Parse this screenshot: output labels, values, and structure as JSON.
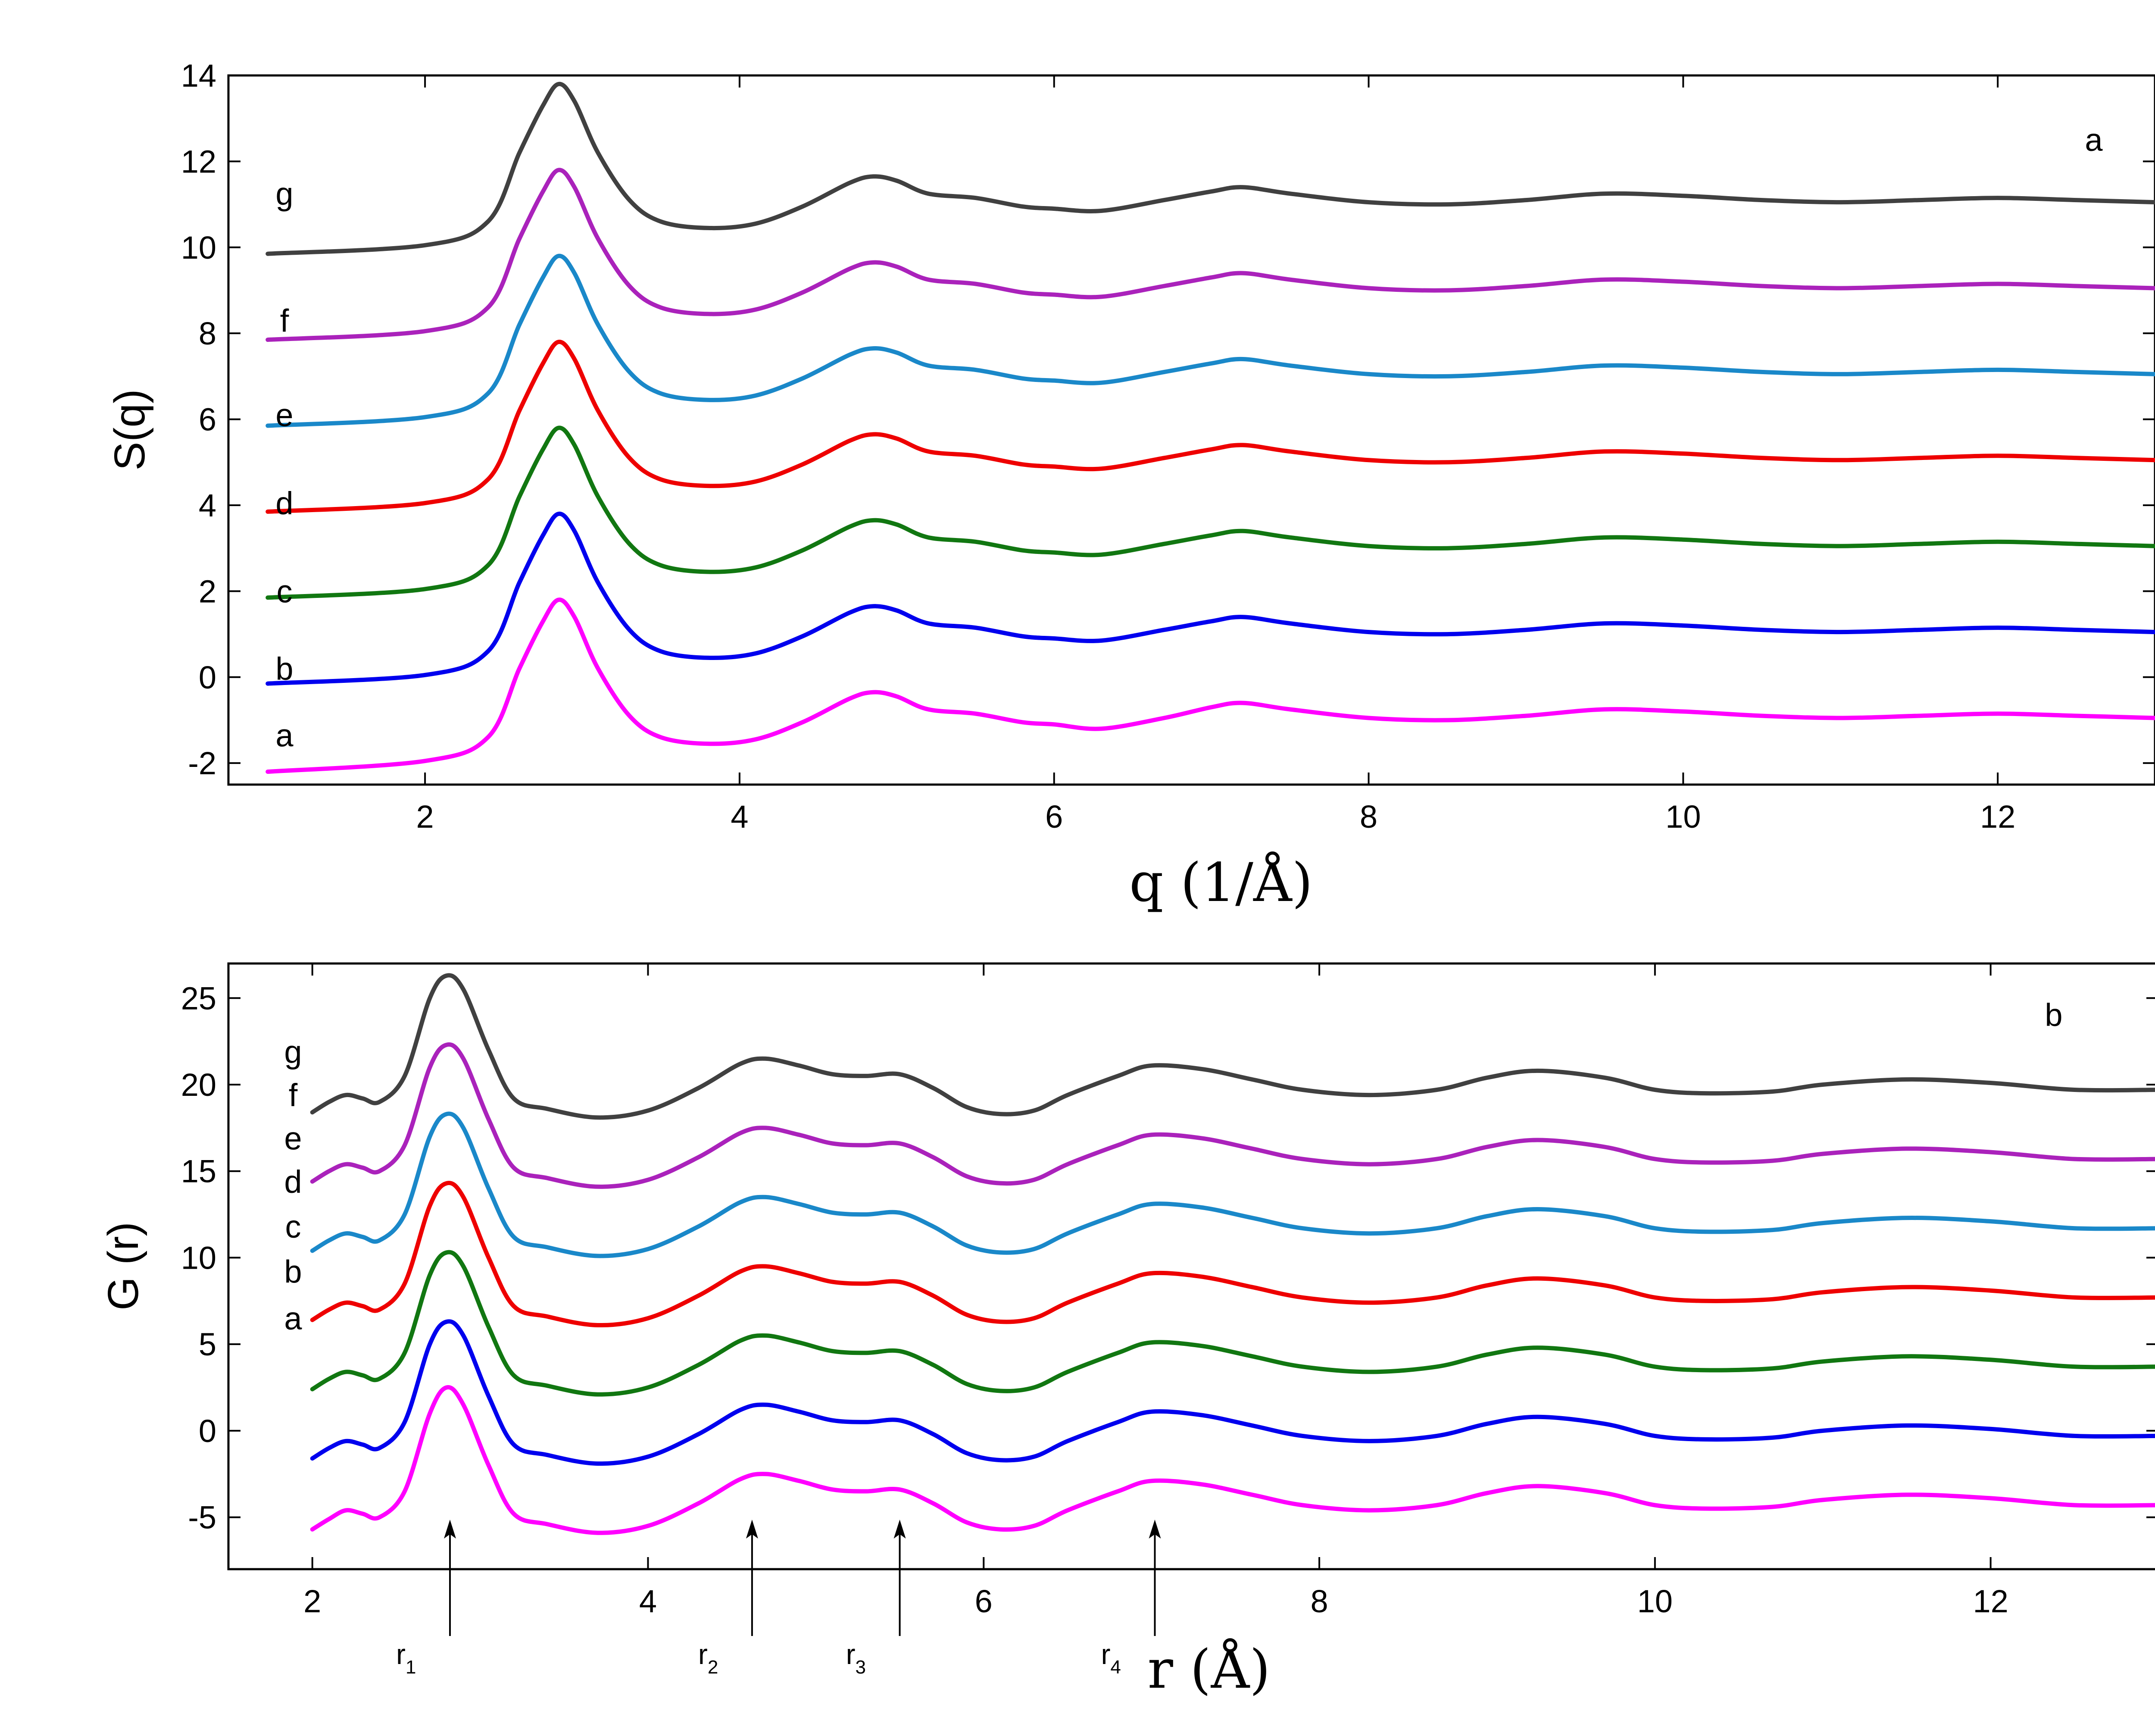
{
  "chart_data": [
    {
      "type": "line",
      "panel_label": "a",
      "title": "",
      "xlabel": "q (1/Å)",
      "ylabel": "S(q)",
      "xlim": [
        0.75,
        13
      ],
      "ylim": [
        -2.5,
        14
      ],
      "xticks": [
        "2",
        "4",
        "6",
        "8",
        "10",
        "12"
      ],
      "yticks": [
        "-2",
        "0",
        "2",
        "4",
        "6",
        "8",
        "10",
        "12",
        "14"
      ],
      "grid": false,
      "x": [
        1.0,
        2.0,
        2.4,
        2.6,
        2.75,
        2.85,
        2.95,
        3.1,
        3.3,
        3.5,
        3.8,
        4.1,
        4.4,
        4.7,
        4.85,
        5.0,
        5.2,
        5.5,
        5.8,
        6.0,
        6.3,
        6.7,
        7.0,
        7.2,
        7.5,
        8.0,
        8.5,
        9.0,
        9.5,
        10.0,
        10.5,
        11.0,
        11.5,
        12.0,
        12.5,
        13.0
      ],
      "series": [
        {
          "name": "a",
          "color": "#ff00ff",
          "values": [
            -2.2,
            -1.95,
            -1.4,
            0.2,
            1.3,
            1.8,
            1.4,
            0.2,
            -0.9,
            -1.4,
            -1.55,
            -1.45,
            -1.05,
            -0.5,
            -0.35,
            -0.45,
            -0.75,
            -0.85,
            -1.05,
            -1.1,
            -1.2,
            -0.95,
            -0.7,
            -0.6,
            -0.75,
            -0.95,
            -1.0,
            -0.9,
            -0.75,
            -0.8,
            -0.9,
            -0.95,
            -0.9,
            -0.85,
            -0.9,
            -0.95
          ]
        },
        {
          "name": "b",
          "color": "#0000ee",
          "values": [
            -0.15,
            0.05,
            0.6,
            2.2,
            3.3,
            3.8,
            3.4,
            2.2,
            1.1,
            0.6,
            0.45,
            0.55,
            0.95,
            1.5,
            1.65,
            1.55,
            1.25,
            1.15,
            0.95,
            0.9,
            0.85,
            1.1,
            1.3,
            1.4,
            1.25,
            1.05,
            1.0,
            1.1,
            1.25,
            1.2,
            1.1,
            1.05,
            1.1,
            1.15,
            1.1,
            1.05
          ]
        },
        {
          "name": "c",
          "color": "#117711",
          "values": [
            1.85,
            2.05,
            2.6,
            4.2,
            5.3,
            5.8,
            5.4,
            4.2,
            3.1,
            2.6,
            2.45,
            2.55,
            2.95,
            3.5,
            3.65,
            3.55,
            3.25,
            3.15,
            2.95,
            2.9,
            2.85,
            3.1,
            3.3,
            3.4,
            3.25,
            3.05,
            3.0,
            3.1,
            3.25,
            3.2,
            3.1,
            3.05,
            3.1,
            3.15,
            3.1,
            3.05
          ]
        },
        {
          "name": "d",
          "color": "#ee0000",
          "values": [
            3.85,
            4.05,
            4.6,
            6.2,
            7.3,
            7.8,
            7.4,
            6.2,
            5.1,
            4.6,
            4.45,
            4.55,
            4.95,
            5.5,
            5.65,
            5.55,
            5.25,
            5.15,
            4.95,
            4.9,
            4.85,
            5.1,
            5.3,
            5.4,
            5.25,
            5.05,
            5.0,
            5.1,
            5.25,
            5.2,
            5.1,
            5.05,
            5.1,
            5.15,
            5.1,
            5.05
          ]
        },
        {
          "name": "e",
          "color": "#1a88c9",
          "values": [
            5.85,
            6.05,
            6.6,
            8.2,
            9.3,
            9.8,
            9.4,
            8.2,
            7.1,
            6.6,
            6.45,
            6.55,
            6.95,
            7.5,
            7.65,
            7.55,
            7.25,
            7.15,
            6.95,
            6.9,
            6.85,
            7.1,
            7.3,
            7.4,
            7.25,
            7.05,
            7.0,
            7.1,
            7.25,
            7.2,
            7.1,
            7.05,
            7.1,
            7.15,
            7.1,
            7.05
          ]
        },
        {
          "name": "f",
          "color": "#aa22bb",
          "values": [
            7.85,
            8.05,
            8.6,
            10.2,
            11.3,
            11.8,
            11.4,
            10.2,
            9.1,
            8.6,
            8.45,
            8.55,
            8.95,
            9.5,
            9.65,
            9.55,
            9.25,
            9.15,
            8.95,
            8.9,
            8.85,
            9.1,
            9.3,
            9.4,
            9.25,
            9.05,
            9.0,
            9.1,
            9.25,
            9.2,
            9.1,
            9.05,
            9.1,
            9.15,
            9.1,
            9.05
          ]
        },
        {
          "name": "g",
          "color": "#404040",
          "values": [
            9.85,
            10.05,
            10.6,
            12.2,
            13.3,
            13.8,
            13.4,
            12.2,
            11.1,
            10.6,
            10.45,
            10.55,
            10.95,
            11.5,
            11.65,
            11.55,
            11.25,
            11.15,
            10.95,
            10.9,
            10.85,
            11.1,
            11.3,
            11.4,
            11.25,
            11.05,
            11.0,
            11.1,
            11.25,
            11.2,
            11.1,
            11.05,
            11.1,
            11.15,
            11.1,
            11.05
          ]
        }
      ],
      "series_labels": [
        {
          "text": "a",
          "y": -1.35
        },
        {
          "text": "b",
          "y": 0.2
        },
        {
          "text": "c",
          "y": 2.0
        },
        {
          "text": "d",
          "y": 4.05
        },
        {
          "text": "e",
          "y": 6.1
        },
        {
          "text": "f",
          "y": 8.3
        },
        {
          "text": "g",
          "y": 11.25
        }
      ]
    },
    {
      "type": "line",
      "panel_label": "b",
      "title": "",
      "xlabel": "r (Å)",
      "ylabel": "G (r)",
      "xlim": [
        1.5,
        13
      ],
      "ylim": [
        -8,
        27
      ],
      "xticks": [
        "2",
        "4",
        "6",
        "8",
        "10",
        "12"
      ],
      "yticks": [
        "-5",
        "0",
        "5",
        "10",
        "15",
        "20",
        "25"
      ],
      "grid": false,
      "x": [
        2.0,
        2.1,
        2.2,
        2.3,
        2.4,
        2.55,
        2.7,
        2.8,
        2.9,
        3.05,
        3.2,
        3.4,
        3.7,
        4.0,
        4.3,
        4.55,
        4.7,
        4.9,
        5.1,
        5.3,
        5.5,
        5.7,
        5.9,
        6.1,
        6.3,
        6.5,
        6.8,
        7.0,
        7.3,
        7.6,
        7.9,
        8.3,
        8.7,
        9.0,
        9.3,
        9.7,
        10.0,
        10.3,
        10.7,
        11.0,
        11.5,
        12.0,
        12.5,
        13.0
      ],
      "series": [
        {
          "name": "a",
          "color": "#ff00ff",
          "values": [
            -5.7,
            -5.1,
            -4.6,
            -4.8,
            -5.0,
            -3.5,
            1.0,
            2.5,
            1.5,
            -2.0,
            -4.8,
            -5.4,
            -5.9,
            -5.5,
            -4.2,
            -2.8,
            -2.5,
            -2.9,
            -3.4,
            -3.5,
            -3.4,
            -4.2,
            -5.3,
            -5.7,
            -5.5,
            -4.6,
            -3.5,
            -2.9,
            -3.1,
            -3.7,
            -4.3,
            -4.6,
            -4.3,
            -3.6,
            -3.2,
            -3.6,
            -4.3,
            -4.5,
            -4.4,
            -4.0,
            -3.7,
            -3.9,
            -4.3,
            -4.3
          ]
        },
        {
          "name": "b",
          "color": "#0000ee",
          "values": [
            -1.6,
            -1.0,
            -0.6,
            -0.8,
            -1.0,
            0.5,
            5.0,
            6.3,
            5.5,
            2.0,
            -0.8,
            -1.4,
            -1.9,
            -1.5,
            -0.2,
            1.2,
            1.5,
            1.1,
            0.6,
            0.5,
            0.6,
            -0.2,
            -1.3,
            -1.7,
            -1.5,
            -0.6,
            0.5,
            1.1,
            0.9,
            0.3,
            -0.3,
            -0.6,
            -0.3,
            0.4,
            0.8,
            0.4,
            -0.3,
            -0.5,
            -0.4,
            0.0,
            0.3,
            0.1,
            -0.3,
            -0.3
          ]
        },
        {
          "name": "c",
          "color": "#117711",
          "values": [
            2.4,
            3.0,
            3.4,
            3.2,
            3.0,
            4.5,
            9.0,
            10.3,
            9.5,
            6.0,
            3.2,
            2.6,
            2.1,
            2.5,
            3.8,
            5.2,
            5.5,
            5.1,
            4.6,
            4.5,
            4.6,
            3.8,
            2.7,
            2.3,
            2.5,
            3.4,
            4.5,
            5.1,
            4.9,
            4.3,
            3.7,
            3.4,
            3.7,
            4.4,
            4.8,
            4.4,
            3.7,
            3.5,
            3.6,
            4.0,
            4.3,
            4.1,
            3.7,
            3.7
          ]
        },
        {
          "name": "d",
          "color": "#ee0000",
          "values": [
            6.4,
            7.0,
            7.4,
            7.2,
            7.0,
            8.5,
            13.0,
            14.3,
            13.5,
            10.0,
            7.2,
            6.6,
            6.1,
            6.5,
            7.8,
            9.2,
            9.5,
            9.1,
            8.6,
            8.5,
            8.6,
            7.8,
            6.7,
            6.3,
            6.5,
            7.4,
            8.5,
            9.1,
            8.9,
            8.3,
            7.7,
            7.4,
            7.7,
            8.4,
            8.8,
            8.4,
            7.7,
            7.5,
            7.6,
            8.0,
            8.3,
            8.1,
            7.7,
            7.7
          ]
        },
        {
          "name": "e",
          "color": "#1a88c9",
          "values": [
            10.4,
            11.0,
            11.4,
            11.2,
            11.0,
            12.5,
            17.0,
            18.3,
            17.5,
            14.0,
            11.2,
            10.6,
            10.1,
            10.5,
            11.8,
            13.2,
            13.5,
            13.1,
            12.6,
            12.5,
            12.6,
            11.8,
            10.7,
            10.3,
            10.5,
            11.4,
            12.5,
            13.1,
            12.9,
            12.3,
            11.7,
            11.4,
            11.7,
            12.4,
            12.8,
            12.4,
            11.7,
            11.5,
            11.6,
            12.0,
            12.3,
            12.1,
            11.7,
            11.7
          ]
        },
        {
          "name": "f",
          "color": "#aa22bb",
          "values": [
            14.4,
            15.0,
            15.4,
            15.2,
            15.0,
            16.5,
            21.0,
            22.3,
            21.5,
            18.0,
            15.2,
            14.6,
            14.1,
            14.5,
            15.8,
            17.2,
            17.5,
            17.1,
            16.6,
            16.5,
            16.6,
            15.8,
            14.7,
            14.3,
            14.5,
            15.4,
            16.5,
            17.1,
            16.9,
            16.3,
            15.7,
            15.4,
            15.7,
            16.4,
            16.8,
            16.4,
            15.7,
            15.5,
            15.6,
            16.0,
            16.3,
            16.1,
            15.7,
            15.7
          ]
        },
        {
          "name": "g",
          "color": "#404040",
          "values": [
            18.4,
            19.0,
            19.4,
            19.2,
            19.0,
            20.5,
            25.0,
            26.3,
            25.5,
            22.0,
            19.2,
            18.6,
            18.1,
            18.5,
            19.8,
            21.2,
            21.5,
            21.1,
            20.6,
            20.5,
            20.6,
            19.8,
            18.7,
            18.3,
            18.5,
            19.4,
            20.5,
            21.1,
            20.9,
            20.3,
            19.7,
            19.4,
            19.7,
            20.4,
            20.8,
            20.4,
            19.7,
            19.5,
            19.6,
            20.0,
            20.3,
            20.1,
            19.7,
            19.7
          ]
        }
      ],
      "series_labels": [
        {
          "text": "a",
          "y": 6.5
        },
        {
          "text": "b",
          "y": 9.2
        },
        {
          "text": "c",
          "y": 11.8
        },
        {
          "text": "d",
          "y": 14.4
        },
        {
          "text": "e",
          "y": 16.9
        },
        {
          "text": "f",
          "y": 19.4
        },
        {
          "text": "g",
          "y": 21.9
        }
      ],
      "arrows": [
        {
          "x": 2.82,
          "label": "r",
          "sub": "1"
        },
        {
          "x": 4.62,
          "label": "r",
          "sub": "2"
        },
        {
          "x": 5.5,
          "label": "r",
          "sub": "3"
        },
        {
          "x": 7.02,
          "label": "r",
          "sub": "4"
        }
      ]
    }
  ]
}
